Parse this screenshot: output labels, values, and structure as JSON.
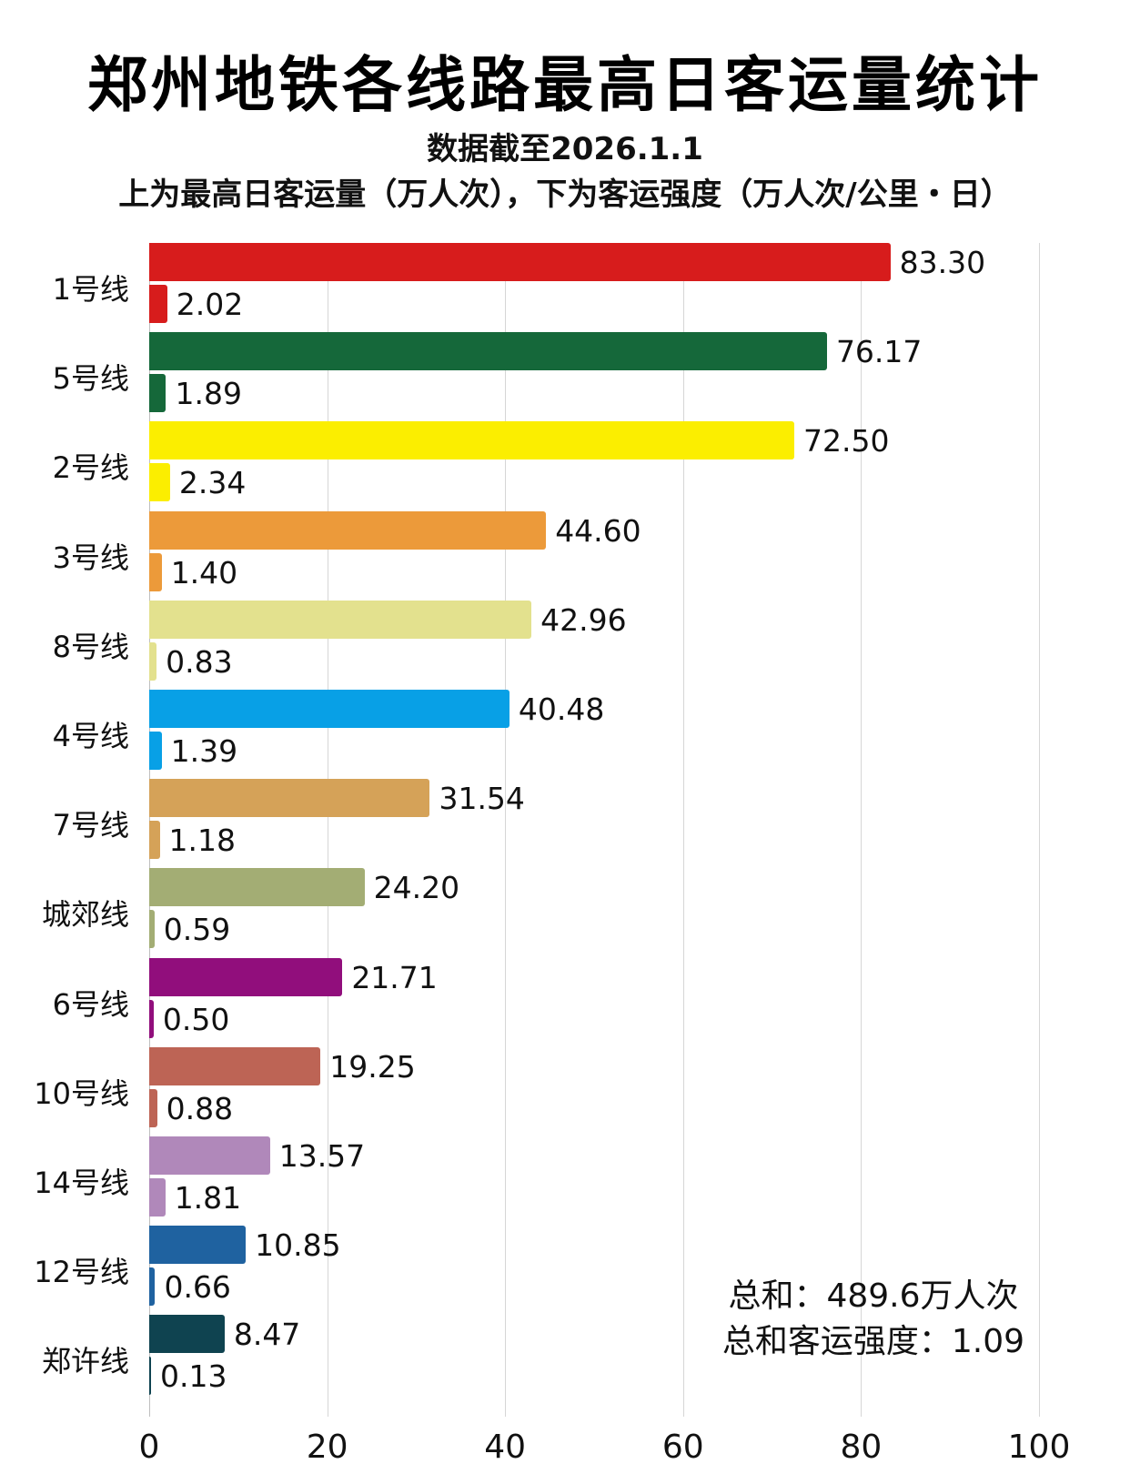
{
  "header": {
    "title": "郑州地铁各线路最高日客运量统计",
    "date_note": "数据截至2026.1.1",
    "legend_note": "上为最高日客运量（万人次），下为客运强度（万人次/公里・日）"
  },
  "summary": {
    "total": "总和：489.6万人次",
    "total_intensity": "总和客运强度：1.09"
  },
  "axis": {
    "ticks": [
      "0",
      "20",
      "40",
      "60",
      "80",
      "100"
    ]
  },
  "rows": [
    {
      "label": "1号线",
      "ridership": "83.30",
      "intensity": "2.02",
      "color": "#d71c1c"
    },
    {
      "label": "5号线",
      "ridership": "76.17",
      "intensity": "1.89",
      "color": "#15683a"
    },
    {
      "label": "2号线",
      "ridership": "72.50",
      "intensity": "2.34",
      "color": "#fbee00"
    },
    {
      "label": "3号线",
      "ridership": "44.60",
      "intensity": "1.40",
      "color": "#ec9a3a"
    },
    {
      "label": "8号线",
      "ridership": "42.96",
      "intensity": "0.83",
      "color": "#e3e18e"
    },
    {
      "label": "4号线",
      "ridership": "40.48",
      "intensity": "1.39",
      "color": "#08a0e6"
    },
    {
      "label": "7号线",
      "ridership": "31.54",
      "intensity": "1.18",
      "color": "#d5a258"
    },
    {
      "label": "城郊线",
      "ridership": "24.20",
      "intensity": "0.59",
      "color": "#a3ad74"
    },
    {
      "label": "6号线",
      "ridership": "21.71",
      "intensity": "0.50",
      "color": "#910e7c"
    },
    {
      "label": "10号线",
      "ridership": "19.25",
      "intensity": "0.88",
      "color": "#bd6455"
    },
    {
      "label": "14号线",
      "ridership": "13.57",
      "intensity": "1.81",
      "color": "#b088ba"
    },
    {
      "label": "12号线",
      "ridership": "10.85",
      "intensity": "0.66",
      "color": "#1f62a0"
    },
    {
      "label": "郑许线",
      "ridership": "8.47",
      "intensity": "0.13",
      "color": "#0f4350"
    }
  ],
  "chart_data": {
    "type": "bar",
    "orientation": "horizontal",
    "title": "郑州地铁各线路最高日客运量统计",
    "subtitle": "数据截至2026.1.1；上为最高日客运量（万人次），下为客运强度（万人次/公里・日）",
    "categories": [
      "1号线",
      "5号线",
      "2号线",
      "3号线",
      "8号线",
      "4号线",
      "7号线",
      "城郊线",
      "6号线",
      "10号线",
      "14号线",
      "12号线",
      "郑许线"
    ],
    "series": [
      {
        "name": "最高日客运量（万人次）",
        "values": [
          83.3,
          76.17,
          72.5,
          44.6,
          42.96,
          40.48,
          31.54,
          24.2,
          21.71,
          19.25,
          13.57,
          10.85,
          8.47
        ]
      },
      {
        "name": "客运强度（万人次/公里・日）",
        "values": [
          2.02,
          1.89,
          2.34,
          1.4,
          0.83,
          1.39,
          1.18,
          0.59,
          0.5,
          0.88,
          1.81,
          0.66,
          0.13
        ]
      }
    ],
    "xlabel": "",
    "ylabel": "",
    "xlim": [
      0,
      100
    ],
    "xticks": [
      0,
      20,
      40,
      60,
      80,
      100
    ],
    "grid": true,
    "annotations": [
      "总和：489.6万人次",
      "总和客运强度：1.09"
    ]
  }
}
